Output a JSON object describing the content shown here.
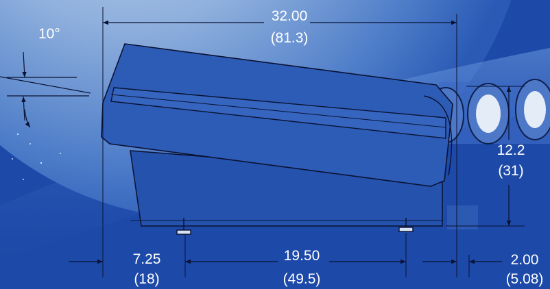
{
  "colors": {
    "background": "#1d49a8",
    "background_light": "#4f80cf",
    "earth_light": "#b7cbe8",
    "line": "#0a1233",
    "text": "#ffffff"
  },
  "dimensions": {
    "overall_width": {
      "inch": "32.00",
      "mm": "(81.3)"
    },
    "angle": {
      "value": "10°"
    },
    "height": {
      "inch": "12.2",
      "mm": "(31)"
    },
    "left_foot_offset": {
      "inch": "7.25",
      "mm": "(18)"
    },
    "foot_spacing": {
      "inch": "19.50",
      "mm": "(49.5)"
    },
    "right_offset": {
      "inch": "2.00",
      "mm": "(5.08)"
    }
  }
}
